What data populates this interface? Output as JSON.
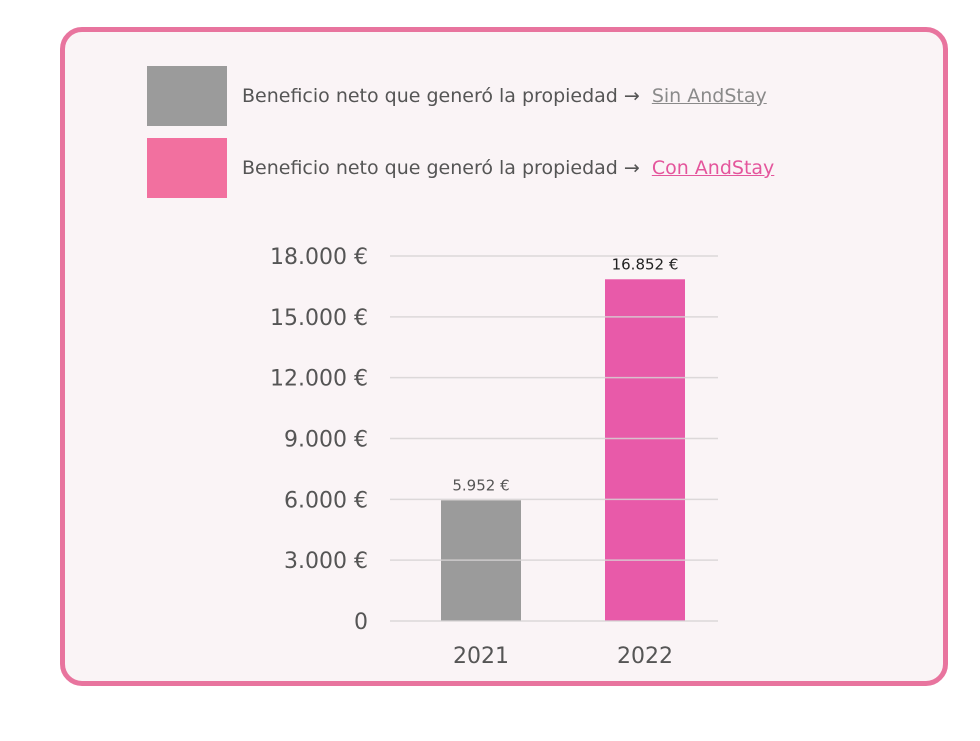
{
  "legend": [
    {
      "text": "Beneficio neto que generó la propiedad →",
      "link": "Sin AndStay",
      "color": "#9b9b9b",
      "link_color": "#8a8a8a"
    },
    {
      "text": "Beneficio neto que generó la propiedad →",
      "link": "Con AndStay",
      "color": "#f2709f",
      "link_color": "#e4559c"
    }
  ],
  "chart_data": {
    "type": "bar",
    "categories": [
      "2021",
      "2022"
    ],
    "values": [
      5952,
      16852
    ],
    "data_labels": [
      "5.952 €",
      "16.852 €"
    ],
    "colors": [
      "#9b9b9b",
      "#e85aa9"
    ],
    "ylim": [
      0,
      18000
    ],
    "yticks": [
      0,
      3000,
      6000,
      9000,
      12000,
      15000,
      18000
    ],
    "ytick_labels": [
      "0",
      "3.000 €",
      "6.000 €",
      "9.000 €",
      "12.000 €",
      "15.000 €",
      "18.000 €"
    ],
    "grid": true,
    "legend_position": "top",
    "title": "",
    "xlabel": "",
    "ylabel": ""
  }
}
